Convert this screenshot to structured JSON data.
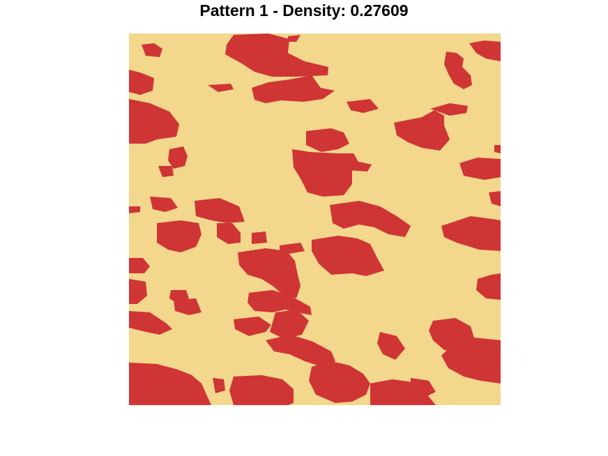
{
  "title": "Pattern 1 - Density: 0.27609",
  "chart_data": {
    "type": "heatmap",
    "title": "Pattern 1 - Density: 0.27609",
    "density": 0.27609,
    "colors": {
      "background": "#F2D78C",
      "occupied": "#CF3535",
      "page": "#FFFFFF"
    },
    "xlabel": "",
    "ylabel": "",
    "axes": "none",
    "grid": false,
    "legend": "none"
  }
}
